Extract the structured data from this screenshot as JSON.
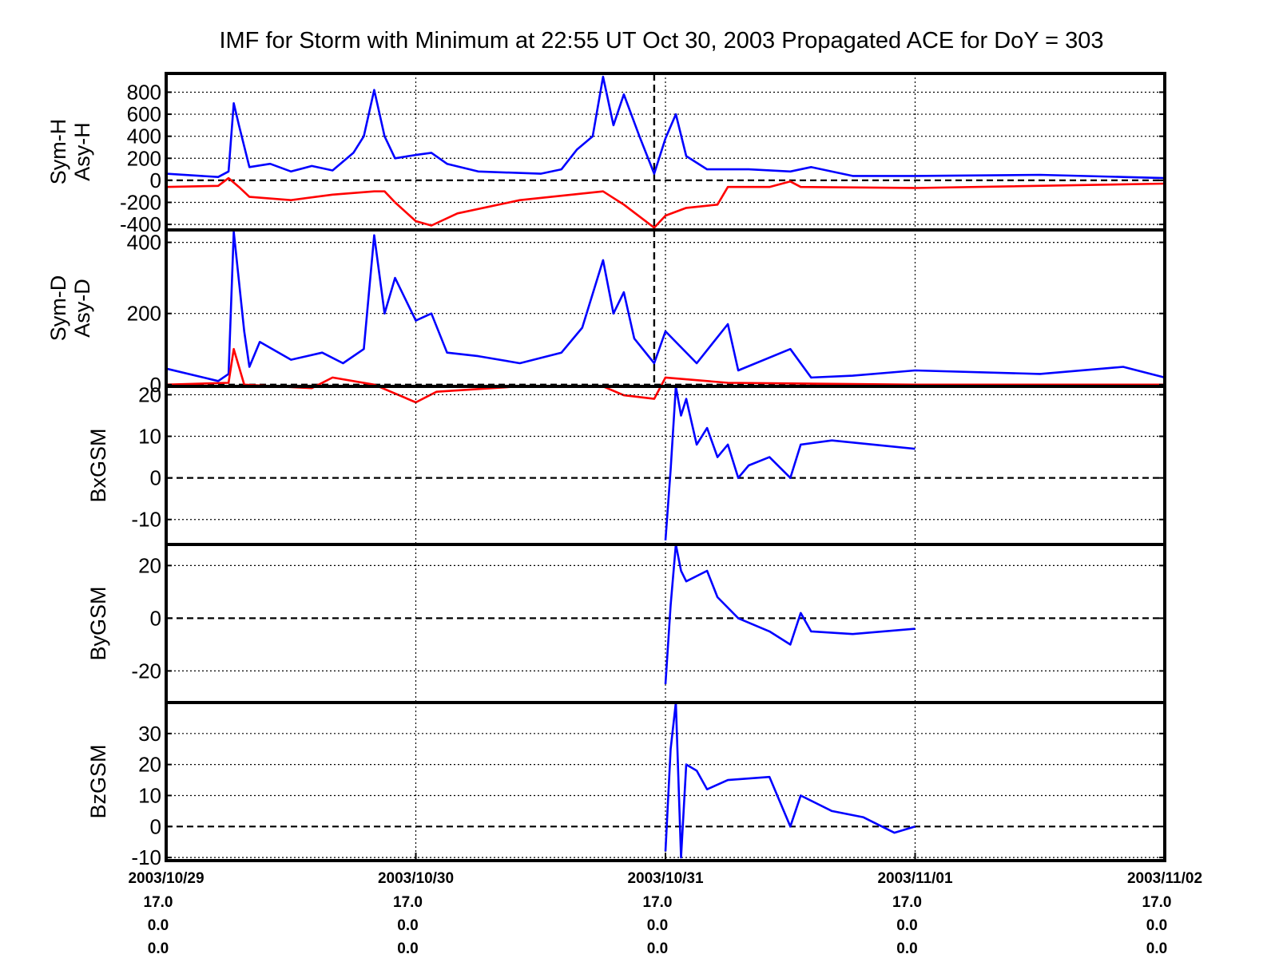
{
  "chart_data": {
    "type": "line",
    "title": "IMF for Storm with Minimum at 22:55 UT Oct 30, 2003  Propagated ACE for DoY = 303",
    "x_range": [
      "2003/10/29 00:00",
      "2003/11/02 00:00"
    ],
    "x_ticks": [
      {
        "date": "2003/10/29",
        "lines": [
          "17.0",
          "0.0",
          "0.0"
        ]
      },
      {
        "date": "2003/10/30",
        "lines": [
          "17.0",
          "0.0",
          "0.0"
        ]
      },
      {
        "date": "2003/10/31",
        "lines": [
          "17.0",
          "0.0",
          "0.0"
        ]
      },
      {
        "date": "2003/11/01",
        "lines": [
          "17.0",
          "0.0",
          "0.0"
        ]
      },
      {
        "date": "2003/11/02",
        "lines": [
          "17.0",
          "0.0",
          "0.0"
        ]
      }
    ],
    "storm_minimum": "2003/10/30 22:55",
    "grid": true,
    "series_colors": {
      "first": "#0000ff",
      "second": "#ff0000"
    },
    "panels": [
      {
        "ylabel": [
          "Sym-H",
          "Asy-H"
        ],
        "ylim": [
          -450,
          970
        ],
        "yticks": [
          -400,
          -200,
          0,
          200,
          400,
          600,
          800
        ],
        "series": [
          {
            "color": "#0000ff",
            "points": [
              [
                "2003/10/29 00:00",
                60
              ],
              [
                "2003/10/29 05:00",
                30
              ],
              [
                "2003/10/29 06:00",
                80
              ],
              [
                "2003/10/29 06:30",
                700
              ],
              [
                "2003/10/29 07:00",
                500
              ],
              [
                "2003/10/29 08:00",
                120
              ],
              [
                "2003/10/29 10:00",
                150
              ],
              [
                "2003/10/29 12:00",
                80
              ],
              [
                "2003/10/29 14:00",
                130
              ],
              [
                "2003/10/29 16:00",
                90
              ],
              [
                "2003/10/29 18:00",
                250
              ],
              [
                "2003/10/29 19:00",
                400
              ],
              [
                "2003/10/29 20:00",
                820
              ],
              [
                "2003/10/29 21:00",
                400
              ],
              [
                "2003/10/29 22:00",
                200
              ],
              [
                "2003/10/30 00:00",
                230
              ],
              [
                "2003/10/30 01:30",
                250
              ],
              [
                "2003/10/30 03:00",
                150
              ],
              [
                "2003/10/30 06:00",
                80
              ],
              [
                "2003/10/30 12:00",
                60
              ],
              [
                "2003/10/30 14:00",
                100
              ],
              [
                "2003/10/30 15:30",
                280
              ],
              [
                "2003/10/30 17:00",
                400
              ],
              [
                "2003/10/30 18:00",
                940
              ],
              [
                "2003/10/30 19:00",
                500
              ],
              [
                "2003/10/30 20:00",
                780
              ],
              [
                "2003/10/30 21:30",
                400
              ],
              [
                "2003/10/30 22:55",
                60
              ],
              [
                "2003/10/31 00:00",
                380
              ],
              [
                "2003/10/31 01:00",
                600
              ],
              [
                "2003/10/31 02:00",
                220
              ],
              [
                "2003/10/31 04:00",
                100
              ],
              [
                "2003/10/31 08:00",
                100
              ],
              [
                "2003/10/31 12:00",
                80
              ],
              [
                "2003/10/31 14:00",
                120
              ],
              [
                "2003/10/31 18:00",
                40
              ],
              [
                "2003/11/01 00:00",
                40
              ],
              [
                "2003/11/01 12:00",
                50
              ],
              [
                "2003/11/01 20:00",
                30
              ],
              [
                "2003/11/02 00:00",
                20
              ]
            ]
          },
          {
            "color": "#ff0000",
            "points": [
              [
                "2003/10/29 00:00",
                -60
              ],
              [
                "2003/10/29 05:00",
                -50
              ],
              [
                "2003/10/29 06:00",
                20
              ],
              [
                "2003/10/29 07:00",
                -60
              ],
              [
                "2003/10/29 08:00",
                -150
              ],
              [
                "2003/10/29 12:00",
                -180
              ],
              [
                "2003/10/29 16:00",
                -130
              ],
              [
                "2003/10/29 20:00",
                -100
              ],
              [
                "2003/10/29 21:00",
                -100
              ],
              [
                "2003/10/29 22:00",
                -200
              ],
              [
                "2003/10/30 00:00",
                -370
              ],
              [
                "2003/10/30 01:30",
                -410
              ],
              [
                "2003/10/30 04:00",
                -300
              ],
              [
                "2003/10/30 10:00",
                -180
              ],
              [
                "2003/10/30 18:00",
                -100
              ],
              [
                "2003/10/30 20:00",
                -220
              ],
              [
                "2003/10/30 22:55",
                -430
              ],
              [
                "2003/10/31 00:00",
                -320
              ],
              [
                "2003/10/31 02:00",
                -250
              ],
              [
                "2003/10/31 05:00",
                -220
              ],
              [
                "2003/10/31 06:00",
                -60
              ],
              [
                "2003/10/31 10:00",
                -60
              ],
              [
                "2003/10/31 12:00",
                -10
              ],
              [
                "2003/10/31 13:00",
                -60
              ],
              [
                "2003/11/01 00:00",
                -70
              ],
              [
                "2003/11/02 00:00",
                -30
              ]
            ]
          }
        ]
      },
      {
        "ylabel": [
          "Sym-D",
          "Asy-D"
        ],
        "ylim": [
          -5,
          435
        ],
        "yticks": [
          0,
          200,
          400
        ],
        "series": [
          {
            "color": "#0000ff",
            "points": [
              [
                "2003/10/29 00:00",
                45
              ],
              [
                "2003/10/29 05:00",
                10
              ],
              [
                "2003/10/29 06:00",
                30
              ],
              [
                "2003/10/29 06:30",
                430
              ],
              [
                "2003/10/29 07:30",
                150
              ],
              [
                "2003/10/29 08:00",
                50
              ],
              [
                "2003/10/29 09:00",
                120
              ],
              [
                "2003/10/29 12:00",
                70
              ],
              [
                "2003/10/29 15:00",
                90
              ],
              [
                "2003/10/29 17:00",
                60
              ],
              [
                "2003/10/29 19:00",
                100
              ],
              [
                "2003/10/29 20:00",
                420
              ],
              [
                "2003/10/29 21:00",
                200
              ],
              [
                "2003/10/29 22:00",
                300
              ],
              [
                "2003/10/30 00:00",
                180
              ],
              [
                "2003/10/30 01:30",
                200
              ],
              [
                "2003/10/30 03:00",
                90
              ],
              [
                "2003/10/30 06:00",
                80
              ],
              [
                "2003/10/30 10:00",
                60
              ],
              [
                "2003/10/30 14:00",
                90
              ],
              [
                "2003/10/30 16:00",
                160
              ],
              [
                "2003/10/30 18:00",
                350
              ],
              [
                "2003/10/30 19:00",
                200
              ],
              [
                "2003/10/30 20:00",
                260
              ],
              [
                "2003/10/30 21:00",
                130
              ],
              [
                "2003/10/30 22:55",
                60
              ],
              [
                "2003/10/31 00:00",
                150
              ],
              [
                "2003/10/31 03:00",
                60
              ],
              [
                "2003/10/31 06:00",
                170
              ],
              [
                "2003/10/31 07:00",
                40
              ],
              [
                "2003/10/31 12:00",
                100
              ],
              [
                "2003/10/31 14:00",
                20
              ],
              [
                "2003/10/31 18:00",
                25
              ],
              [
                "2003/11/01 00:00",
                40
              ],
              [
                "2003/11/01 12:00",
                30
              ],
              [
                "2003/11/01 20:00",
                50
              ],
              [
                "2003/11/02 00:00",
                20
              ]
            ]
          },
          {
            "color": "#ff0000",
            "points": [
              [
                "2003/10/29 00:00",
                0
              ],
              [
                "2003/10/29 06:00",
                5
              ],
              [
                "2003/10/29 06:30",
                100
              ],
              [
                "2003/10/29 07:30",
                0
              ],
              [
                "2003/10/29 14:00",
                -10
              ],
              [
                "2003/10/29 16:00",
                20
              ],
              [
                "2003/10/29 20:00",
                0
              ],
              [
                "2003/10/30 00:00",
                -50
              ],
              [
                "2003/10/30 02:00",
                -20
              ],
              [
                "2003/10/30 10:00",
                -5
              ],
              [
                "2003/10/30 18:00",
                -5
              ],
              [
                "2003/10/30 20:00",
                -30
              ],
              [
                "2003/10/30 22:55",
                -40
              ],
              [
                "2003/10/31 00:00",
                20
              ],
              [
                "2003/10/31 06:00",
                5
              ],
              [
                "2003/11/01 00:00",
                0
              ],
              [
                "2003/11/02 00:00",
                0
              ]
            ]
          }
        ]
      },
      {
        "ylabel": [
          "BxGSM"
        ],
        "ylim": [
          -16,
          22
        ],
        "yticks": [
          -10,
          0,
          10,
          20
        ],
        "series": [
          {
            "color": "#0000ff",
            "points": [
              [
                "2003/10/31 00:00",
                -15
              ],
              [
                "2003/10/31 00:30",
                2
              ],
              [
                "2003/10/31 01:00",
                22
              ],
              [
                "2003/10/31 01:30",
                15
              ],
              [
                "2003/10/31 02:00",
                19
              ],
              [
                "2003/10/31 03:00",
                8
              ],
              [
                "2003/10/31 04:00",
                12
              ],
              [
                "2003/10/31 05:00",
                5
              ],
              [
                "2003/10/31 06:00",
                8
              ],
              [
                "2003/10/31 07:00",
                0
              ],
              [
                "2003/10/31 08:00",
                3
              ],
              [
                "2003/10/31 10:00",
                5
              ],
              [
                "2003/10/31 12:00",
                0
              ],
              [
                "2003/10/31 13:00",
                8
              ],
              [
                "2003/10/31 16:00",
                9
              ],
              [
                "2003/10/31 20:00",
                8
              ],
              [
                "2003/11/01 00:00",
                7
              ]
            ]
          }
        ]
      },
      {
        "ylabel": [
          "ByGSM"
        ],
        "ylim": [
          -32,
          28
        ],
        "yticks": [
          -20,
          0,
          20
        ],
        "series": [
          {
            "color": "#0000ff",
            "points": [
              [
                "2003/10/31 00:00",
                -25
              ],
              [
                "2003/10/31 00:30",
                5
              ],
              [
                "2003/10/31 01:00",
                28
              ],
              [
                "2003/10/31 01:30",
                18
              ],
              [
                "2003/10/31 02:00",
                14
              ],
              [
                "2003/10/31 04:00",
                18
              ],
              [
                "2003/10/31 05:00",
                8
              ],
              [
                "2003/10/31 07:00",
                0
              ],
              [
                "2003/10/31 10:00",
                -5
              ],
              [
                "2003/10/31 12:00",
                -10
              ],
              [
                "2003/10/31 13:00",
                2
              ],
              [
                "2003/10/31 14:00",
                -5
              ],
              [
                "2003/10/31 18:00",
                -6
              ],
              [
                "2003/11/01 00:00",
                -4
              ]
            ]
          }
        ]
      },
      {
        "ylabel": [
          "BzGSM"
        ],
        "ylim": [
          -11,
          40
        ],
        "yticks": [
          -10,
          0,
          10,
          20,
          30
        ],
        "series": [
          {
            "color": "#0000ff",
            "points": [
              [
                "2003/10/31 00:00",
                -8
              ],
              [
                "2003/10/31 00:30",
                25
              ],
              [
                "2003/10/31 01:00",
                40
              ],
              [
                "2003/10/31 01:30",
                -10
              ],
              [
                "2003/10/31 02:00",
                20
              ],
              [
                "2003/10/31 03:00",
                18
              ],
              [
                "2003/10/31 04:00",
                12
              ],
              [
                "2003/10/31 06:00",
                15
              ],
              [
                "2003/10/31 10:00",
                16
              ],
              [
                "2003/10/31 12:00",
                0
              ],
              [
                "2003/10/31 13:00",
                10
              ],
              [
                "2003/10/31 16:00",
                5
              ],
              [
                "2003/10/31 19:00",
                3
              ],
              [
                "2003/10/31 22:00",
                -2
              ],
              [
                "2003/11/01 00:00",
                0
              ]
            ]
          }
        ]
      }
    ]
  }
}
